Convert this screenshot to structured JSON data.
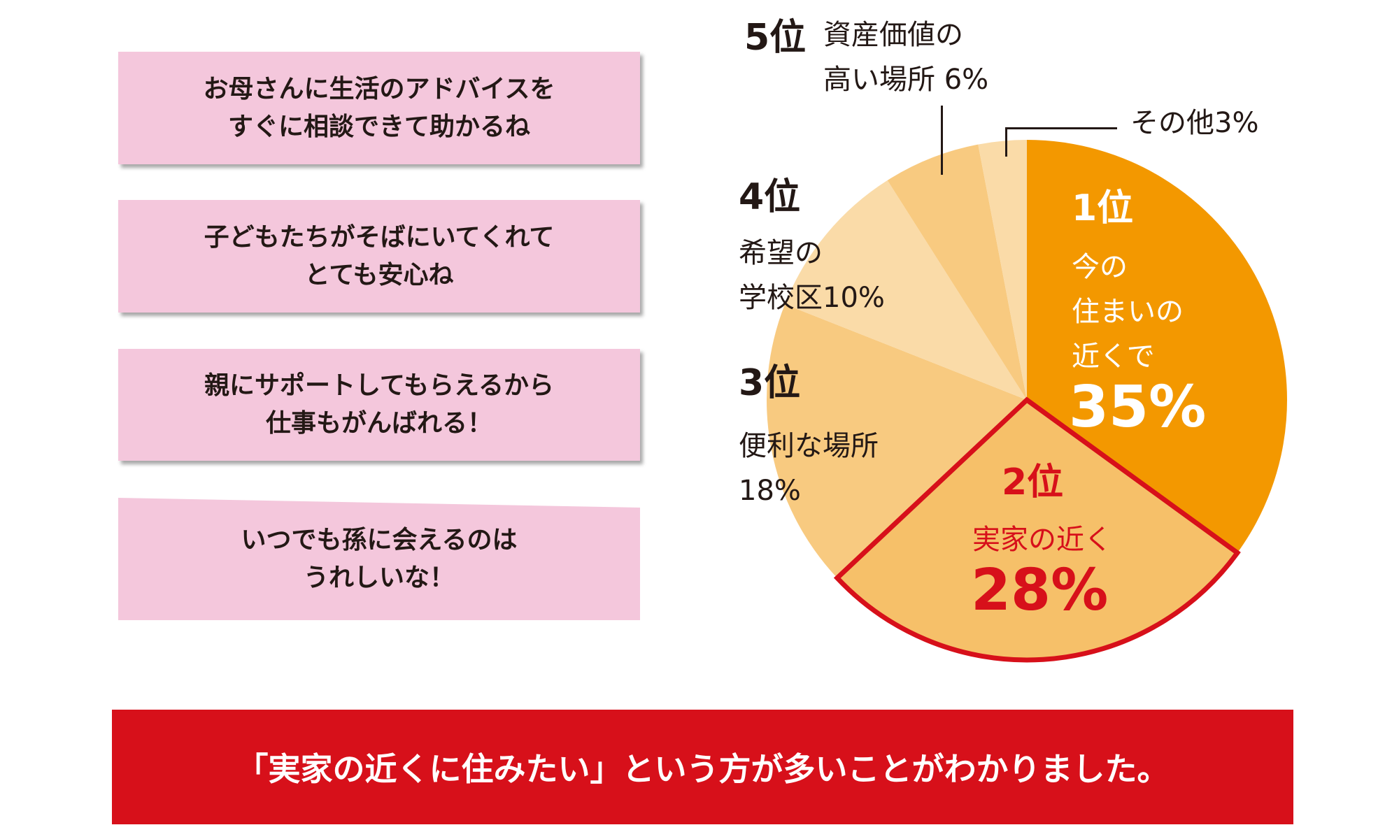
{
  "bubbles": [
    {
      "line1": "お母さんに生活のアドバイスを",
      "line2": "すぐに相談できて助かるね"
    },
    {
      "line1": "子どもたちがそばにいてくれて",
      "line2": "とても安心ね"
    },
    {
      "line1": "親にサポートしてもらえるから",
      "line2": "仕事もがんばれる！"
    },
    {
      "line1": "いつでも孫に会えるのは",
      "line2": "うれしいな！"
    }
  ],
  "chart_data": {
    "type": "pie",
    "start": "12 o'clock, clockwise",
    "slices": [
      {
        "rank": "1位",
        "label_lines": [
          "今の",
          "住まいの",
          "近くで"
        ],
        "value": 35,
        "value_text": "35%",
        "color": "#F39800"
      },
      {
        "rank": "2位",
        "label_lines": [
          "実家の近く"
        ],
        "value": 28,
        "value_text": "28%",
        "color": "#F6C069",
        "highlight": "#D7101A"
      },
      {
        "rank": "3位",
        "label_lines": [
          "便利な場所",
          "18%"
        ],
        "value": 18,
        "color": "#F8CA80"
      },
      {
        "rank": "4位",
        "label_lines": [
          "希望の",
          "学校区10%"
        ],
        "value": 10,
        "color": "#FADBA8"
      },
      {
        "rank": "5位",
        "label_lines": [
          "資産価値の",
          "高い場所 6%"
        ],
        "value": 6,
        "color": "#F8CA80"
      },
      {
        "rank": "",
        "label_lines": [
          "その他3%"
        ],
        "value": 3,
        "color": "#FADBA8"
      }
    ]
  },
  "banner": "「実家の近くに住みたい」という方が多いことがわかりました。"
}
